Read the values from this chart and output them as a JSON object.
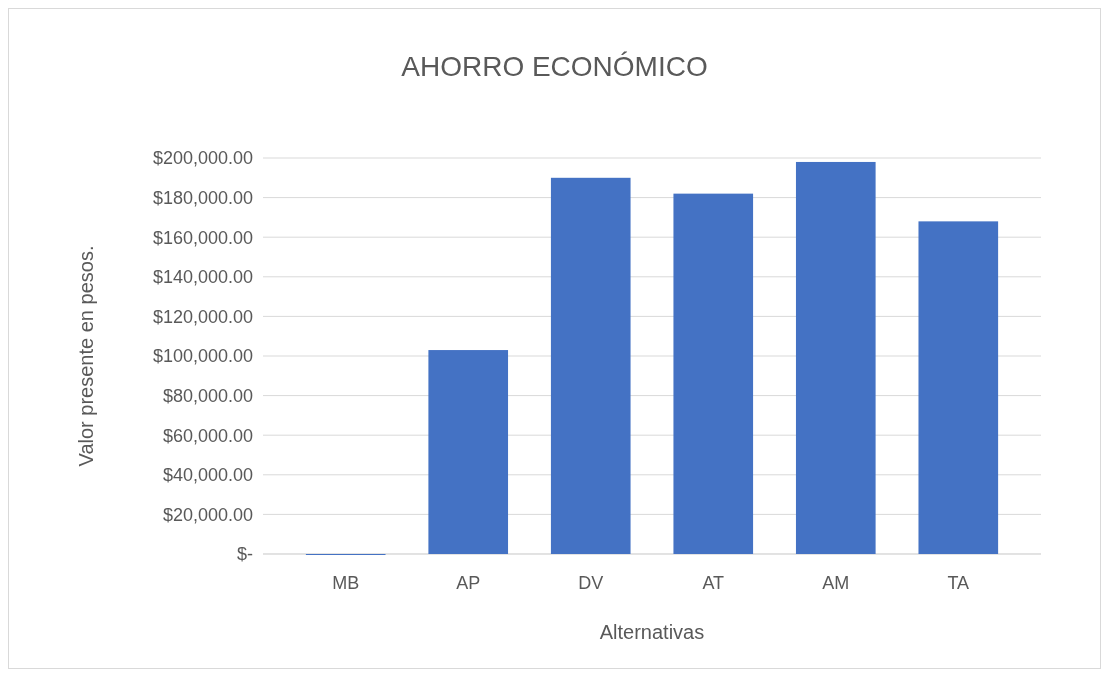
{
  "chart_data": {
    "type": "bar",
    "title": "AHORRO ECONÓMICO",
    "xlabel": "Alternativas",
    "ylabel": "Valor presente en pesos.",
    "categories": [
      "MB",
      "AP",
      "DV",
      "AT",
      "AM",
      "TA"
    ],
    "values": [
      0,
      103000,
      190000,
      182000,
      198000,
      168000
    ],
    "color": "#4472c4",
    "ylim": [
      0,
      200000
    ],
    "yticks": [
      {
        "value": 0,
        "label": "$-"
      },
      {
        "value": 20000,
        "label": "$20,000.00"
      },
      {
        "value": 40000,
        "label": "$40,000.00"
      },
      {
        "value": 60000,
        "label": "$60,000.00"
      },
      {
        "value": 80000,
        "label": "$80,000.00"
      },
      {
        "value": 100000,
        "label": "$100,000.00"
      },
      {
        "value": 120000,
        "label": "$120,000.00"
      },
      {
        "value": 140000,
        "label": "$140,000.00"
      },
      {
        "value": 160000,
        "label": "$160,000.00"
      },
      {
        "value": 180000,
        "label": "$180,000.00"
      },
      {
        "value": 200000,
        "label": "$200,000.00"
      }
    ],
    "grid": true
  }
}
